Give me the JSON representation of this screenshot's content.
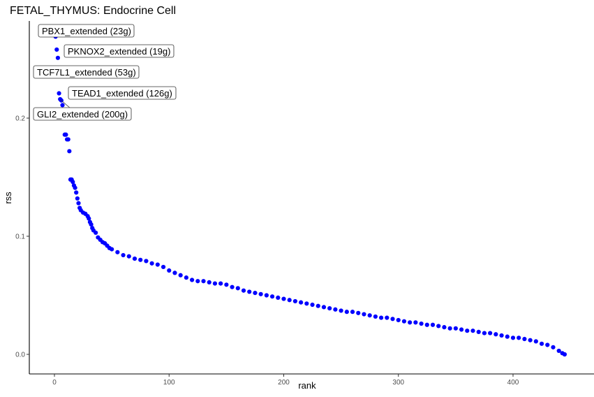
{
  "chart_data": {
    "type": "scatter",
    "title": "FETAL_THYMUS: Endocrine Cell",
    "xlabel": "rank",
    "ylabel": "rss",
    "xlim": [
      -20,
      470
    ],
    "ylim": [
      -0.016,
      0.282
    ],
    "xticks": [
      0,
      100,
      200,
      300,
      400
    ],
    "xtick_labels": [
      "0",
      "100",
      "200",
      "300",
      "400"
    ],
    "yticks": [
      0.0,
      0.1,
      0.2
    ],
    "ytick_labels": [
      "0.0",
      "0.1",
      "0.2"
    ],
    "grid": false,
    "point_color": "#0000FF",
    "x": [
      1,
      2,
      3,
      4,
      5,
      6,
      7,
      9,
      10,
      11,
      12,
      13,
      14,
      15,
      16,
      17,
      18,
      19,
      20,
      21,
      22,
      23,
      25,
      27,
      29,
      30,
      31,
      32,
      33,
      34,
      36,
      38,
      40,
      42,
      44,
      46,
      48,
      50,
      55,
      60,
      65,
      70,
      75,
      80,
      85,
      90,
      95,
      100,
      105,
      110,
      115,
      120,
      125,
      130,
      135,
      140,
      145,
      150,
      155,
      160,
      165,
      170,
      175,
      180,
      185,
      190,
      195,
      200,
      205,
      210,
      215,
      220,
      225,
      230,
      235,
      240,
      245,
      250,
      255,
      260,
      265,
      270,
      275,
      280,
      285,
      290,
      295,
      300,
      305,
      310,
      315,
      320,
      325,
      330,
      335,
      340,
      345,
      350,
      355,
      360,
      365,
      370,
      375,
      380,
      385,
      390,
      395,
      400,
      405,
      410,
      415,
      420,
      425,
      430,
      435,
      440,
      443,
      445
    ],
    "y": [
      0.269,
      0.258,
      0.251,
      0.221,
      0.216,
      0.215,
      0.211,
      0.186,
      0.186,
      0.182,
      0.182,
      0.172,
      0.148,
      0.148,
      0.146,
      0.143,
      0.141,
      0.137,
      0.132,
      0.128,
      0.124,
      0.122,
      0.12,
      0.119,
      0.117,
      0.115,
      0.112,
      0.11,
      0.107,
      0.105,
      0.103,
      0.099,
      0.097,
      0.095,
      0.094,
      0.092,
      0.09,
      0.089,
      0.0865,
      0.084,
      0.083,
      0.081,
      0.08,
      0.079,
      0.077,
      0.076,
      0.074,
      0.071,
      0.069,
      0.067,
      0.065,
      0.063,
      0.062,
      0.062,
      0.061,
      0.06,
      0.06,
      0.059,
      0.057,
      0.056,
      0.054,
      0.053,
      0.052,
      0.051,
      0.05,
      0.049,
      0.048,
      0.047,
      0.046,
      0.045,
      0.044,
      0.043,
      0.042,
      0.041,
      0.04,
      0.039,
      0.038,
      0.037,
      0.036,
      0.036,
      0.035,
      0.034,
      0.033,
      0.032,
      0.031,
      0.031,
      0.03,
      0.029,
      0.028,
      0.027,
      0.027,
      0.026,
      0.025,
      0.025,
      0.024,
      0.023,
      0.022,
      0.022,
      0.021,
      0.02,
      0.02,
      0.019,
      0.018,
      0.018,
      0.017,
      0.016,
      0.015,
      0.014,
      0.014,
      0.013,
      0.012,
      0.011,
      0.009,
      0.008,
      0.006,
      0.003,
      0.001,
      0.0
    ],
    "annotations": [
      {
        "text": "PBX1_extended (23g)",
        "rank": 1,
        "rss": 0.269
      },
      {
        "text": "PKNOX2_extended (19g)",
        "rank": 2,
        "rss": 0.258
      },
      {
        "text": "TCF7L1_extended (53g)",
        "rank": 3,
        "rss": 0.251
      },
      {
        "text": "TEAD1_extended (126g)",
        "rank": 4,
        "rss": 0.221
      },
      {
        "text": "GLI2_extended (200g)",
        "rank": 5,
        "rss": 0.216
      }
    ]
  }
}
